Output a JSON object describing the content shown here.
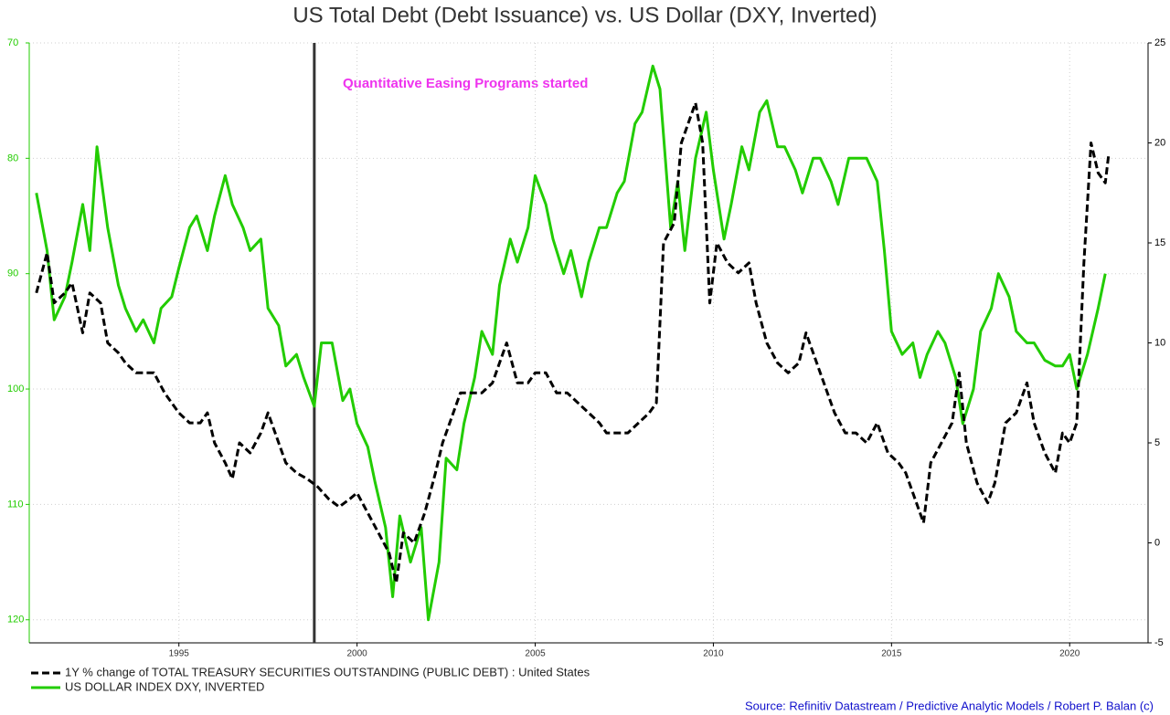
{
  "chart_data": {
    "type": "line",
    "title": "US Total Debt (Debt Issuance) vs. US Dollar (DXY, Inverted)",
    "annotation": "Quantitative Easing Programs started",
    "vline": 1998.8,
    "source": "Source: Refinitiv Datastream / Predictive Analytic Models / Robert P. Balan (c)",
    "xlim": [
      1990.8,
      2022.2
    ],
    "xticks": [
      1995,
      2000,
      2005,
      2010,
      2015,
      2020
    ],
    "ylim": [
      70,
      122
    ],
    "yticks": [
      70,
      80,
      90,
      100,
      110,
      120
    ],
    "y_inverted": true,
    "y2lim": [
      -5,
      25
    ],
    "y2ticks": [
      -5,
      0,
      5,
      10,
      15,
      20,
      25
    ],
    "grid": true,
    "legend": "bottom-left",
    "series": [
      {
        "name": "1Y % change of TOTAL TREASURY SECURITIES OUTSTANDING (PUBLIC DEBT) : United States",
        "color": "#000000",
        "dashed": true,
        "axis": "y2",
        "x": [
          1991.0,
          1991.3,
          1991.5,
          1991.8,
          1992.0,
          1992.3,
          1992.5,
          1992.8,
          1993.0,
          1993.3,
          1993.5,
          1993.8,
          1994.0,
          1994.3,
          1994.6,
          1994.8,
          1995.0,
          1995.3,
          1995.6,
          1995.8,
          1996.0,
          1996.3,
          1996.5,
          1996.7,
          1997.0,
          1997.3,
          1997.5,
          1997.8,
          1998.0,
          1998.3,
          1998.6,
          1998.9,
          1999.2,
          1999.5,
          1999.8,
          2000.0,
          2000.3,
          2000.6,
          2000.9,
          2001.1,
          2001.3,
          2001.6,
          2001.9,
          2002.2,
          2002.4,
          2002.6,
          2002.9,
          2003.2,
          2003.5,
          2003.8,
          2004.0,
          2004.2,
          2004.5,
          2004.8,
          2005.0,
          2005.3,
          2005.6,
          2005.9,
          2006.2,
          2006.5,
          2006.8,
          2007.0,
          2007.3,
          2007.6,
          2007.9,
          2008.2,
          2008.4,
          2008.6,
          2008.9,
          2009.1,
          2009.3,
          2009.5,
          2009.7,
          2009.9,
          2010.1,
          2010.4,
          2010.7,
          2011.0,
          2011.2,
          2011.5,
          2011.8,
          2012.1,
          2012.4,
          2012.6,
          2012.9,
          2013.1,
          2013.4,
          2013.7,
          2014.0,
          2014.3,
          2014.6,
          2014.9,
          2015.2,
          2015.4,
          2015.7,
          2015.9,
          2016.1,
          2016.4,
          2016.7,
          2016.9,
          2017.1,
          2017.4,
          2017.7,
          2017.9,
          2018.2,
          2018.5,
          2018.8,
          2019.0,
          2019.3,
          2019.6,
          2019.8,
          2020.0,
          2020.2,
          2020.4,
          2020.6,
          2020.8,
          2021.0,
          2021.1
        ],
        "values": [
          12.5,
          14.5,
          12,
          12.5,
          13,
          10.5,
          12.5,
          12,
          10,
          9.5,
          9,
          8.5,
          8.5,
          8.5,
          7.5,
          7,
          6.5,
          6,
          6,
          6.5,
          5,
          4,
          3.2,
          5,
          4.5,
          5.5,
          6.5,
          5,
          4,
          3.5,
          3.2,
          2.8,
          2.2,
          1.8,
          2.2,
          2.5,
          1.5,
          0.5,
          -0.5,
          -2,
          0.5,
          0,
          1.5,
          3.5,
          5,
          6,
          7.5,
          7.5,
          7.5,
          8,
          9,
          10,
          8,
          8,
          8.5,
          8.5,
          7.5,
          7.5,
          7,
          6.5,
          6,
          5.5,
          5.5,
          5.5,
          6,
          6.5,
          7,
          15,
          16,
          20,
          21,
          22,
          20,
          12,
          15,
          14,
          13.5,
          14,
          12,
          10,
          9,
          8.5,
          9,
          10.5,
          9,
          8,
          6.5,
          5.5,
          5.5,
          5,
          6,
          4.5,
          4,
          3.5,
          2,
          1,
          4,
          5,
          6,
          8.5,
          5,
          3,
          2,
          3,
          6,
          6.5,
          8,
          6,
          4.5,
          3.5,
          5.5,
          5,
          6,
          14,
          20,
          18.5,
          18,
          19.5
        ]
      },
      {
        "name": "US DOLLAR INDEX DXY, INVERTED",
        "color": "#22cc00",
        "dashed": false,
        "axis": "y",
        "x": [
          1991.0,
          1991.3,
          1991.5,
          1991.8,
          1992.0,
          1992.3,
          1992.5,
          1992.7,
          1993.0,
          1993.3,
          1993.5,
          1993.8,
          1994.0,
          1994.3,
          1994.5,
          1994.8,
          1995.0,
          1995.3,
          1995.5,
          1995.8,
          1996.0,
          1996.3,
          1996.5,
          1996.8,
          1997.0,
          1997.3,
          1997.5,
          1997.8,
          1998.0,
          1998.3,
          1998.5,
          1998.8,
          1999.0,
          1999.3,
          1999.6,
          1999.8,
          2000.0,
          2000.3,
          2000.5,
          2000.8,
          2001.0,
          2001.2,
          2001.5,
          2001.8,
          2002.0,
          2002.3,
          2002.5,
          2002.8,
          2003.0,
          2003.3,
          2003.5,
          2003.8,
          2004.0,
          2004.3,
          2004.5,
          2004.8,
          2005.0,
          2005.3,
          2005.5,
          2005.8,
          2006.0,
          2006.3,
          2006.5,
          2006.8,
          2007.0,
          2007.3,
          2007.5,
          2007.8,
          2008.0,
          2008.3,
          2008.5,
          2008.8,
          2009.0,
          2009.2,
          2009.5,
          2009.8,
          2010.0,
          2010.3,
          2010.5,
          2010.8,
          2011.0,
          2011.3,
          2011.5,
          2011.8,
          2012.0,
          2012.3,
          2012.5,
          2012.8,
          2013.0,
          2013.3,
          2013.5,
          2013.8,
          2014.0,
          2014.3,
          2014.6,
          2014.8,
          2015.0,
          2015.3,
          2015.6,
          2015.8,
          2016.0,
          2016.3,
          2016.5,
          2016.8,
          2017.0,
          2017.3,
          2017.5,
          2017.8,
          2018.0,
          2018.3,
          2018.5,
          2018.8,
          2019.0,
          2019.3,
          2019.6,
          2019.8,
          2020.0,
          2020.2,
          2020.5,
          2020.8,
          2021.0
        ],
        "values": [
          83,
          88,
          94,
          92,
          89,
          84,
          88,
          79,
          86,
          91,
          93,
          95,
          94,
          96,
          93,
          92,
          89.5,
          86,
          85,
          88,
          85,
          81.5,
          84,
          86,
          88,
          87,
          93,
          94.5,
          98,
          97,
          99,
          101.5,
          96,
          96,
          101,
          100,
          103,
          105,
          108,
          112,
          118,
          111,
          115,
          112,
          120,
          115,
          106,
          107,
          103,
          99,
          95,
          97,
          91,
          87,
          89,
          86,
          81.5,
          84,
          87,
          90,
          88,
          92,
          89,
          86,
          86,
          83,
          82,
          77,
          76,
          72,
          74,
          86,
          82,
          88,
          80,
          76,
          81,
          87,
          84,
          79,
          81,
          76,
          75,
          79,
          79,
          81,
          83,
          80,
          80,
          82,
          84,
          80,
          80,
          80,
          82,
          88,
          95,
          97,
          96,
          99,
          97,
          95,
          96,
          99,
          103,
          100,
          95,
          93,
          90,
          92,
          95,
          96,
          96,
          97.5,
          98,
          98,
          97,
          100,
          97,
          93,
          90
        ]
      }
    ]
  }
}
